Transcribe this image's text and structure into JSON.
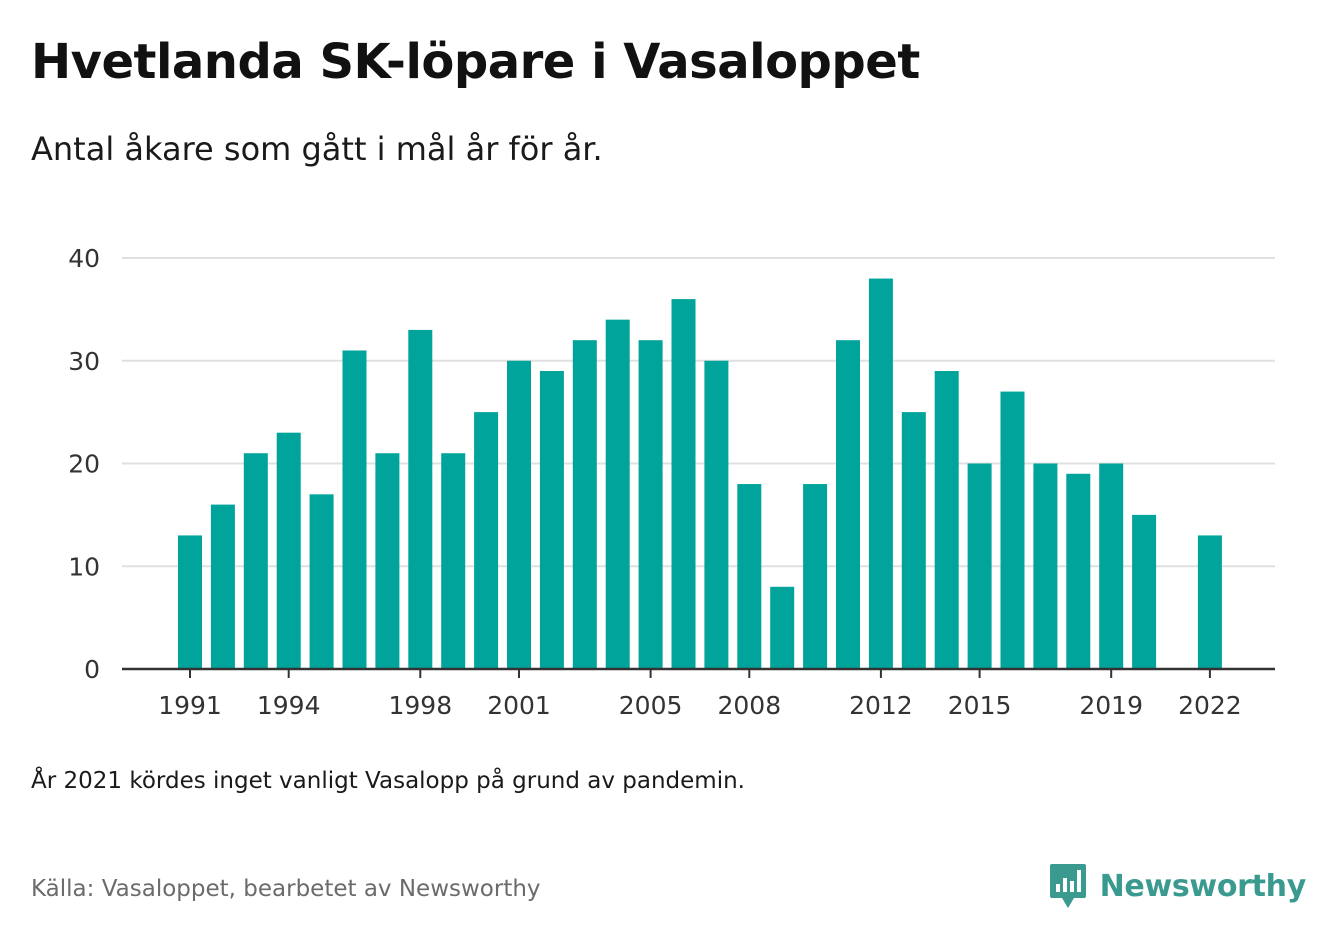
{
  "title": "Hvetlanda SK-löpare i Vasaloppet",
  "subtitle": "Antal åkare som gått i mål år för år.",
  "note": "År 2021 kördes inget vanligt Vasalopp på grund av pandemin.",
  "source": "Källa: Vasaloppet, bearbetet av Newsworthy",
  "brand": {
    "name": "Newsworthy",
    "icon": "newsworthy-logo-icon"
  },
  "colors": {
    "bar": "#00a49a",
    "grid": "#e0e0e0",
    "axis": "#333333",
    "brand": "#3a9a8f"
  },
  "chart_data": {
    "type": "bar",
    "title": "",
    "xlabel": "",
    "ylabel": "",
    "ylim": [
      0,
      40
    ],
    "yticks": [
      0,
      10,
      20,
      30,
      40
    ],
    "grid": true,
    "x_tick_labels": [
      1991,
      1994,
      1998,
      2001,
      2005,
      2008,
      2012,
      2015,
      2019,
      2022
    ],
    "categories": [
      1991,
      1992,
      1993,
      1994,
      1995,
      1996,
      1997,
      1998,
      1999,
      2000,
      2001,
      2002,
      2003,
      2004,
      2005,
      2006,
      2007,
      2008,
      2009,
      2010,
      2011,
      2012,
      2013,
      2014,
      2015,
      2016,
      2017,
      2018,
      2019,
      2020,
      2021,
      2022
    ],
    "values": [
      13,
      16,
      21,
      23,
      17,
      31,
      21,
      33,
      21,
      25,
      30,
      29,
      32,
      34,
      32,
      36,
      30,
      18,
      8,
      18,
      32,
      38,
      25,
      29,
      20,
      27,
      20,
      19,
      20,
      15,
      null,
      13
    ]
  }
}
